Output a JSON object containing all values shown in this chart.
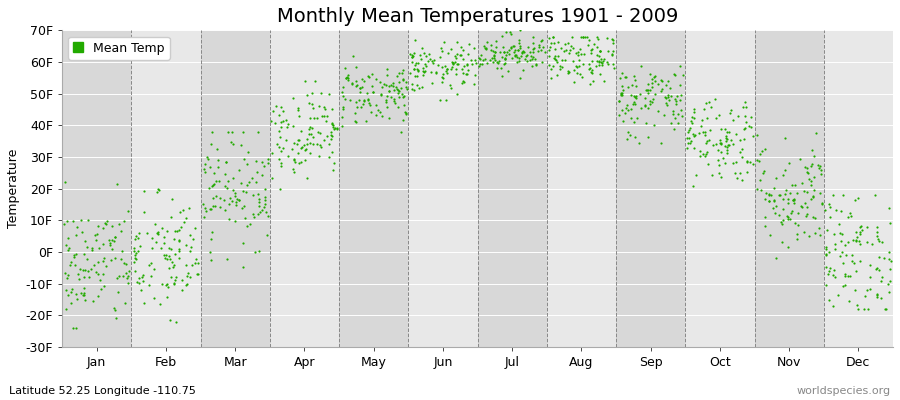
{
  "title": "Monthly Mean Temperatures 1901 - 2009",
  "ylabel": "Temperature",
  "subtitle": "Latitude 52.25 Longitude -110.75",
  "watermark": "worldspecies.org",
  "dot_color": "#22aa00",
  "band_color_odd": "#d8d8d8",
  "band_color_even": "#e8e8e8",
  "bg_color": "#e8e8e8",
  "ylim": [
    -30,
    70
  ],
  "yticks": [
    -30,
    -20,
    -10,
    0,
    10,
    20,
    30,
    40,
    50,
    60,
    70
  ],
  "ytick_labels": [
    "-30F",
    "-20F",
    "-10F",
    "0F",
    "10F",
    "20F",
    "30F",
    "40F",
    "50F",
    "60F",
    "70F"
  ],
  "months": [
    "Jan",
    "Feb",
    "Mar",
    "Apr",
    "May",
    "Jun",
    "Jul",
    "Aug",
    "Sep",
    "Oct",
    "Nov",
    "Dec"
  ],
  "monthly_mean_F": [
    -4,
    -2,
    20,
    38,
    50,
    58,
    63,
    61,
    48,
    36,
    18,
    -1
  ],
  "monthly_std_F": [
    10,
    10,
    9,
    7,
    5,
    4,
    3,
    4,
    6,
    7,
    9,
    10
  ],
  "monthly_min_F": [
    -24,
    -22,
    -8,
    20,
    38,
    48,
    55,
    50,
    32,
    18,
    -2,
    -18
  ],
  "monthly_max_F": [
    22,
    20,
    38,
    54,
    63,
    67,
    70,
    68,
    60,
    55,
    43,
    18
  ],
  "n_years": 109,
  "marker_size": 2.5,
  "title_fontsize": 14,
  "axis_fontsize": 9,
  "tick_fontsize": 9,
  "subtitle_fontsize": 8,
  "legend_fontsize": 9
}
